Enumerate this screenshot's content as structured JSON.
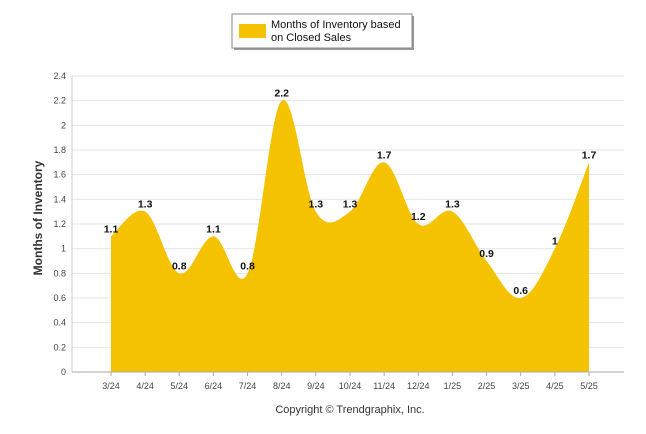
{
  "chart_data": {
    "type": "area",
    "categories": [
      "3/24",
      "4/24",
      "5/24",
      "6/24",
      "7/24",
      "8/24",
      "9/24",
      "10/24",
      "11/24",
      "12/24",
      "1/25",
      "2/25",
      "3/25",
      "4/25",
      "5/25"
    ],
    "series": [
      {
        "name": "Months of Inventory based on Closed Sales",
        "values": [
          1.1,
          1.3,
          0.8,
          1.1,
          0.8,
          2.2,
          1.3,
          1.3,
          1.7,
          1.2,
          1.3,
          0.9,
          0.6,
          1,
          1.7
        ],
        "color": "#F5C200"
      }
    ],
    "data_labels": [
      "1.1",
      "1.3",
      "0.8",
      "1.1",
      "0.8",
      "2.2",
      "1.3",
      "1.3",
      "1.7",
      "1.2",
      "1.3",
      "0.9",
      "0.6",
      "1",
      "1.7"
    ],
    "ylabel": "Months of Inventory",
    "xlabel": "",
    "ylim": [
      0,
      2.4
    ],
    "yticks": [
      "0",
      "0.2",
      "0.4",
      "0.6",
      "0.8",
      "1",
      "1.2",
      "1.4",
      "1.6",
      "1.8",
      "2",
      "2.2",
      "2.4"
    ],
    "grid": true,
    "legend_position": "top-center",
    "legend_lines": [
      "Months of Inventory based",
      "on Closed Sales"
    ],
    "footer": "Copyright © Trendgraphix, Inc."
  }
}
